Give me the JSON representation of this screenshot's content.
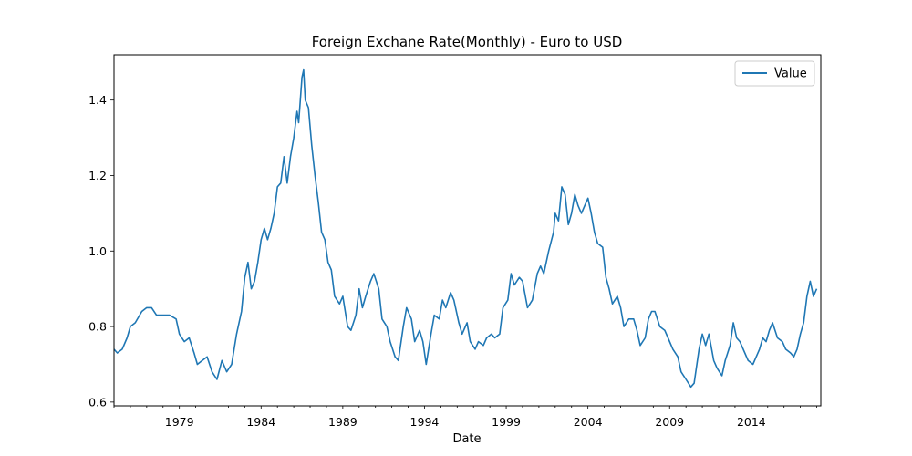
{
  "chart_data": {
    "type": "line",
    "title": "Foreign Exchane Rate(Monthly) - Euro to USD",
    "xlabel": "Date",
    "ylabel": "",
    "xlim": [
      1975.0,
      2018.25
    ],
    "ylim": [
      0.59,
      1.52
    ],
    "x_ticks": [
      1979,
      1984,
      1989,
      1994,
      1999,
      2004,
      2009,
      2014
    ],
    "y_ticks": [
      0.6,
      0.8,
      1.0,
      1.2,
      1.4
    ],
    "y_tick_labels": [
      "0.6",
      "0.8",
      "1.0",
      "1.2",
      "1.4"
    ],
    "grid": false,
    "legend_position": "top-right",
    "colors": {
      "series": "#1f77b4",
      "axis": "#000000"
    },
    "series": [
      {
        "name": "Value",
        "points": [
          [
            1975.0,
            0.74
          ],
          [
            1975.2,
            0.73
          ],
          [
            1975.5,
            0.74
          ],
          [
            1975.8,
            0.77
          ],
          [
            1976.0,
            0.8
          ],
          [
            1976.3,
            0.81
          ],
          [
            1976.7,
            0.84
          ],
          [
            1977.0,
            0.85
          ],
          [
            1977.3,
            0.85
          ],
          [
            1977.6,
            0.83
          ],
          [
            1978.0,
            0.83
          ],
          [
            1978.4,
            0.83
          ],
          [
            1978.8,
            0.82
          ],
          [
            1979.0,
            0.78
          ],
          [
            1979.3,
            0.76
          ],
          [
            1979.6,
            0.77
          ],
          [
            1979.9,
            0.73
          ],
          [
            1980.1,
            0.7
          ],
          [
            1980.4,
            0.71
          ],
          [
            1980.7,
            0.72
          ],
          [
            1981.0,
            0.68
          ],
          [
            1981.3,
            0.66
          ],
          [
            1981.6,
            0.71
          ],
          [
            1981.9,
            0.68
          ],
          [
            1982.2,
            0.7
          ],
          [
            1982.5,
            0.78
          ],
          [
            1982.8,
            0.84
          ],
          [
            1983.0,
            0.93
          ],
          [
            1983.2,
            0.97
          ],
          [
            1983.4,
            0.9
          ],
          [
            1983.6,
            0.92
          ],
          [
            1983.8,
            0.97
          ],
          [
            1984.0,
            1.03
          ],
          [
            1984.2,
            1.06
          ],
          [
            1984.4,
            1.03
          ],
          [
            1984.6,
            1.06
          ],
          [
            1984.8,
            1.1
          ],
          [
            1985.0,
            1.17
          ],
          [
            1985.2,
            1.18
          ],
          [
            1985.4,
            1.25
          ],
          [
            1985.6,
            1.18
          ],
          [
            1985.8,
            1.25
          ],
          [
            1986.0,
            1.3
          ],
          [
            1986.2,
            1.37
          ],
          [
            1986.3,
            1.34
          ],
          [
            1986.5,
            1.46
          ],
          [
            1986.6,
            1.48
          ],
          [
            1986.7,
            1.4
          ],
          [
            1986.9,
            1.38
          ],
          [
            1987.1,
            1.28
          ],
          [
            1987.3,
            1.2
          ],
          [
            1987.5,
            1.13
          ],
          [
            1987.7,
            1.05
          ],
          [
            1987.9,
            1.03
          ],
          [
            1988.1,
            0.97
          ],
          [
            1988.3,
            0.95
          ],
          [
            1988.5,
            0.88
          ],
          [
            1988.8,
            0.86
          ],
          [
            1989.0,
            0.88
          ],
          [
            1989.3,
            0.8
          ],
          [
            1989.5,
            0.79
          ],
          [
            1989.8,
            0.83
          ],
          [
            1990.0,
            0.9
          ],
          [
            1990.2,
            0.85
          ],
          [
            1990.4,
            0.88
          ],
          [
            1990.7,
            0.92
          ],
          [
            1990.9,
            0.94
          ],
          [
            1991.2,
            0.9
          ],
          [
            1991.4,
            0.82
          ],
          [
            1991.7,
            0.8
          ],
          [
            1991.9,
            0.76
          ],
          [
            1992.2,
            0.72
          ],
          [
            1992.4,
            0.71
          ],
          [
            1992.7,
            0.8
          ],
          [
            1992.9,
            0.85
          ],
          [
            1993.2,
            0.82
          ],
          [
            1993.4,
            0.76
          ],
          [
            1993.7,
            0.79
          ],
          [
            1993.9,
            0.76
          ],
          [
            1994.1,
            0.7
          ],
          [
            1994.4,
            0.78
          ],
          [
            1994.6,
            0.83
          ],
          [
            1994.9,
            0.82
          ],
          [
            1995.1,
            0.87
          ],
          [
            1995.3,
            0.85
          ],
          [
            1995.6,
            0.89
          ],
          [
            1995.8,
            0.87
          ],
          [
            1996.1,
            0.81
          ],
          [
            1996.3,
            0.78
          ],
          [
            1996.6,
            0.81
          ],
          [
            1996.8,
            0.76
          ],
          [
            1997.1,
            0.74
          ],
          [
            1997.3,
            0.76
          ],
          [
            1997.6,
            0.75
          ],
          [
            1997.8,
            0.77
          ],
          [
            1998.1,
            0.78
          ],
          [
            1998.3,
            0.77
          ],
          [
            1998.6,
            0.78
          ],
          [
            1998.8,
            0.85
          ],
          [
            1999.1,
            0.87
          ],
          [
            1999.3,
            0.94
          ],
          [
            1999.5,
            0.91
          ],
          [
            1999.8,
            0.93
          ],
          [
            2000.0,
            0.92
          ],
          [
            2000.3,
            0.85
          ],
          [
            2000.6,
            0.87
          ],
          [
            2000.9,
            0.94
          ],
          [
            2001.1,
            0.96
          ],
          [
            2001.3,
            0.94
          ],
          [
            2001.6,
            1.0
          ],
          [
            2001.9,
            1.05
          ],
          [
            2002.0,
            1.1
          ],
          [
            2002.2,
            1.08
          ],
          [
            2002.4,
            1.17
          ],
          [
            2002.6,
            1.15
          ],
          [
            2002.8,
            1.07
          ],
          [
            2003.0,
            1.1
          ],
          [
            2003.2,
            1.15
          ],
          [
            2003.4,
            1.12
          ],
          [
            2003.6,
            1.1
          ],
          [
            2003.8,
            1.12
          ],
          [
            2004.0,
            1.14
          ],
          [
            2004.2,
            1.1
          ],
          [
            2004.4,
            1.05
          ],
          [
            2004.6,
            1.02
          ],
          [
            2004.9,
            1.01
          ],
          [
            2005.1,
            0.93
          ],
          [
            2005.3,
            0.9
          ],
          [
            2005.5,
            0.86
          ],
          [
            2005.8,
            0.88
          ],
          [
            2006.0,
            0.85
          ],
          [
            2006.2,
            0.8
          ],
          [
            2006.5,
            0.82
          ],
          [
            2006.8,
            0.82
          ],
          [
            2007.0,
            0.79
          ],
          [
            2007.2,
            0.75
          ],
          [
            2007.5,
            0.77
          ],
          [
            2007.7,
            0.82
          ],
          [
            2007.9,
            0.84
          ],
          [
            2008.1,
            0.84
          ],
          [
            2008.4,
            0.8
          ],
          [
            2008.7,
            0.79
          ],
          [
            2008.9,
            0.77
          ],
          [
            2009.2,
            0.74
          ],
          [
            2009.5,
            0.72
          ],
          [
            2009.7,
            0.68
          ],
          [
            2010.0,
            0.66
          ],
          [
            2010.3,
            0.64
          ],
          [
            2010.5,
            0.65
          ],
          [
            2010.8,
            0.74
          ],
          [
            2011.0,
            0.78
          ],
          [
            2011.2,
            0.75
          ],
          [
            2011.4,
            0.78
          ],
          [
            2011.7,
            0.71
          ],
          [
            2011.9,
            0.69
          ],
          [
            2012.2,
            0.67
          ],
          [
            2012.4,
            0.71
          ],
          [
            2012.7,
            0.75
          ],
          [
            2012.9,
            0.81
          ],
          [
            2013.1,
            0.77
          ],
          [
            2013.3,
            0.76
          ],
          [
            2013.6,
            0.73
          ],
          [
            2013.8,
            0.71
          ],
          [
            2014.1,
            0.7
          ],
          [
            2014.3,
            0.72
          ],
          [
            2014.5,
            0.74
          ],
          [
            2014.7,
            0.77
          ],
          [
            2014.9,
            0.76
          ],
          [
            2015.1,
            0.79
          ],
          [
            2015.3,
            0.81
          ],
          [
            2015.6,
            0.77
          ],
          [
            2015.9,
            0.76
          ],
          [
            2016.1,
            0.74
          ],
          [
            2016.4,
            0.73
          ],
          [
            2016.6,
            0.72
          ],
          [
            2016.8,
            0.74
          ],
          [
            2017.0,
            0.78
          ],
          [
            2017.2,
            0.81
          ],
          [
            2017.4,
            0.88
          ],
          [
            2017.6,
            0.92
          ],
          [
            2017.8,
            0.88
          ],
          [
            2018.0,
            0.9
          ]
        ]
      }
    ]
  }
}
